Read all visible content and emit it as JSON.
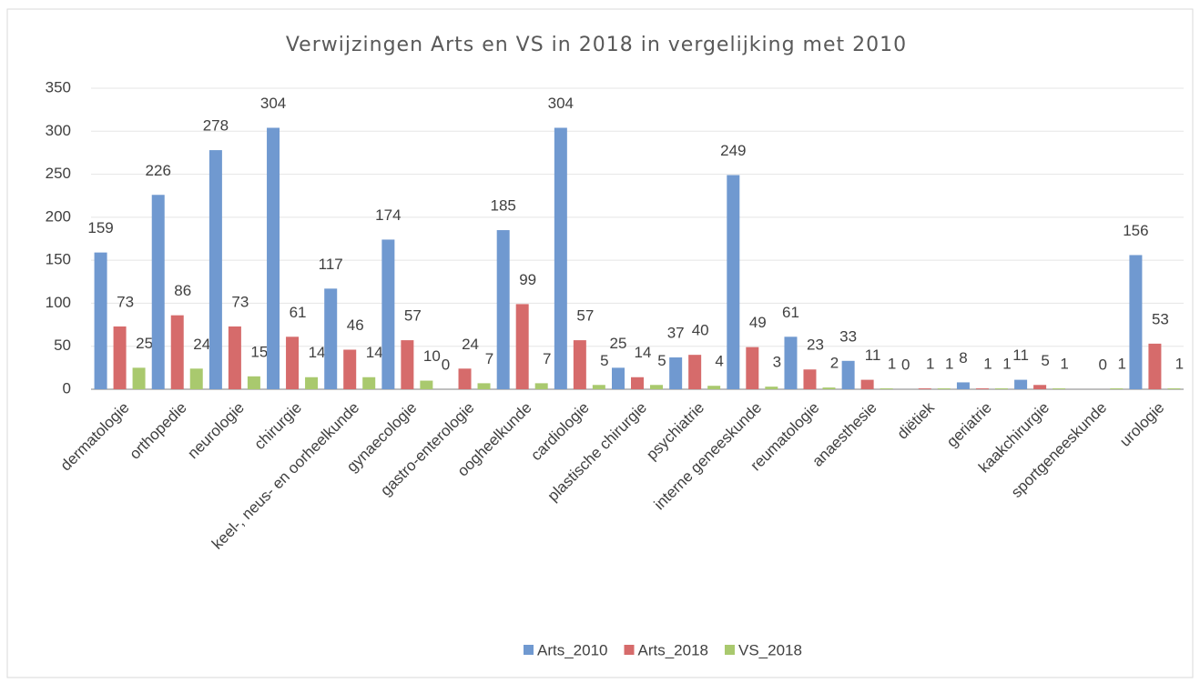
{
  "chart_data": {
    "type": "bar",
    "title": "Verwijzingen Arts en VS in 2018 in vergelijking met 2010",
    "categories": [
      "dermatologie",
      "orthopedie",
      "neurologie",
      "chirurgie",
      "keel-, neus- en oorheelkunde",
      "gynaecologie",
      "gastro-enterologie",
      "oogheelkunde",
      "cardiologie",
      "plastische chirurgie",
      "psychiatrie",
      "interne geneeskunde",
      "reumatologie",
      "anaesthesie",
      "diëtiek",
      "geriatrie",
      "kaakchirurgie",
      "sportgeneeskunde",
      "urologie"
    ],
    "series": [
      {
        "name": "Arts_2010",
        "color": "#7099d0",
        "values": [
          159,
          226,
          278,
          304,
          117,
          174,
          0,
          185,
          304,
          25,
          37,
          249,
          61,
          33,
          0,
          8,
          11,
          null,
          156
        ]
      },
      {
        "name": "Arts_2018",
        "color": "#d66b6b",
        "values": [
          73,
          86,
          73,
          61,
          46,
          57,
          24,
          99,
          57,
          14,
          40,
          49,
          23,
          11,
          1,
          1,
          5,
          0,
          53
        ]
      },
      {
        "name": "VS_2018",
        "color": "#a9c96e",
        "values": [
          25,
          24,
          15,
          14,
          14,
          10,
          7,
          7,
          5,
          5,
          4,
          3,
          2,
          1,
          1,
          1,
          1,
          1,
          1
        ]
      }
    ],
    "ylim": [
      0,
      350
    ],
    "yticks": [
      0,
      50,
      100,
      150,
      200,
      250,
      300,
      350
    ],
    "grid": true,
    "legend": "bottom"
  }
}
